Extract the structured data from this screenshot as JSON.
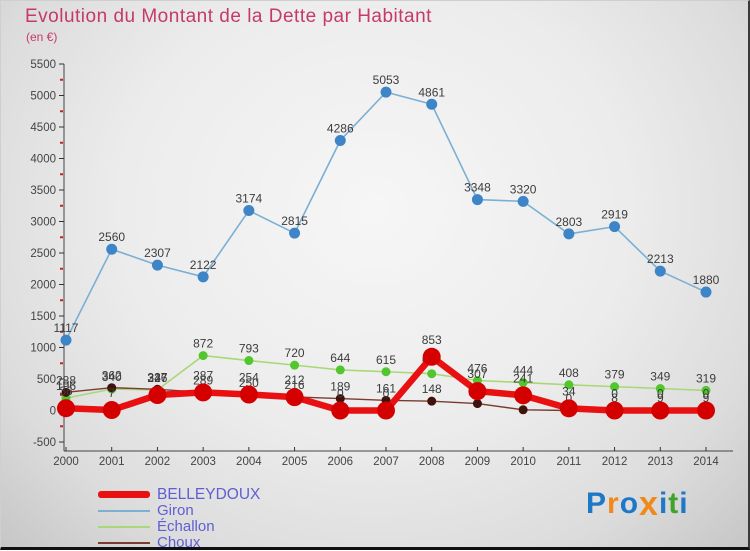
{
  "title": "Evolution du Montant de la Dette par Habitant",
  "subtitle": "(en €)",
  "title_color": "#c53a68",
  "chart_data": {
    "type": "line",
    "x": [
      2000,
      2001,
      2002,
      2003,
      2004,
      2005,
      2006,
      2007,
      2008,
      2009,
      2010,
      2011,
      2012,
      2013,
      2014
    ],
    "series": [
      {
        "name": "BELLEYDOUX",
        "color": "#e81010",
        "point_color": "#d40000",
        "width": 6.5,
        "point_r": 9,
        "values": [
          36,
          7,
          246,
          287,
          254,
          212,
          0,
          0,
          853,
          307,
          241,
          34,
          0,
          0,
          0
        ]
      },
      {
        "name": "Giron",
        "color": "#7bafd4",
        "point_color": "#3d85c6",
        "width": 1.6,
        "point_r": 5.5,
        "values": [
          1117,
          2560,
          2307,
          2122,
          3174,
          2815,
          4286,
          5053,
          4861,
          3348,
          3320,
          2803,
          2919,
          2213,
          1880
        ]
      },
      {
        "name": "Échallon",
        "color": "#a9d878",
        "point_color": "#52c62e",
        "width": 1.6,
        "point_r": 4.5,
        "values": [
          196,
          340,
          327,
          872,
          793,
          720,
          644,
          615,
          584,
          476,
          444,
          408,
          379,
          349,
          319
        ]
      },
      {
        "name": "Choux",
        "color": "#7a3c30",
        "point_color": "#3f120c",
        "width": 1.4,
        "point_r": 4.5,
        "values": [
          288,
          362,
          337,
          289,
          250,
          216,
          189,
          161,
          148,
          110,
          11,
          0,
          8,
          9,
          9
        ]
      }
    ],
    "ylim": [
      -500,
      5500
    ],
    "ytick_step": 500,
    "yminor_step": 250,
    "grid": false,
    "legend_position": "bottom-left",
    "label_color": "#3c3c3c",
    "axis_color": "#444444",
    "minor_tick_color": "#cc2222"
  },
  "legend": {
    "items": [
      {
        "label": "BELLEYDOUX",
        "color": "#e81010",
        "thick": true
      },
      {
        "label": "Giron",
        "color": "#7bafd4",
        "thick": false
      },
      {
        "label": "Échallon",
        "color": "#a9d878",
        "thick": false
      },
      {
        "label": "Choux",
        "color": "#7a3c30",
        "thick": false
      }
    ]
  },
  "logo": {
    "name": "Proxiti",
    "letters": [
      {
        "ch": "P",
        "color": "#1d78c8",
        "big": false
      },
      {
        "ch": "r",
        "color": "#f0881c",
        "big": false
      },
      {
        "ch": "o",
        "color": "#1d78c8",
        "big": false
      },
      {
        "ch": "x",
        "color": "#f0881c",
        "big": true
      },
      {
        "ch": "i",
        "color": "#1d78c8",
        "big": false
      },
      {
        "ch": "t",
        "color": "#3fa32e",
        "big": false
      },
      {
        "ch": "i",
        "color": "#1d78c8",
        "big": false
      }
    ]
  }
}
